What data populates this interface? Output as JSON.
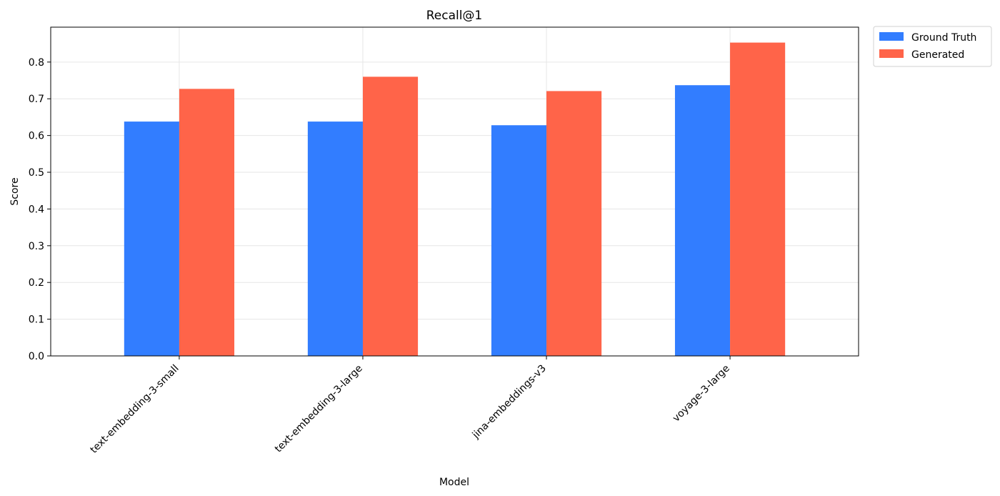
{
  "chart_data": {
    "type": "bar",
    "title": "Recall@1",
    "xlabel": "Model",
    "ylabel": "Score",
    "ylim": [
      0,
      0.895
    ],
    "yticks": [
      0.0,
      0.1,
      0.2,
      0.3,
      0.4,
      0.5,
      0.6,
      0.7,
      0.8
    ],
    "grid": true,
    "legend_position": "outside-top-right",
    "categories": [
      "text-embedding-3-small",
      "text-embedding-3-large",
      "jina-embeddings-v3",
      "voyage-3-large"
    ],
    "series": [
      {
        "name": "Ground Truth",
        "color": "#327dff",
        "values": [
          0.638,
          0.638,
          0.628,
          0.737
        ]
      },
      {
        "name": "Generated",
        "color": "#ff6449",
        "values": [
          0.727,
          0.76,
          0.721,
          0.853
        ]
      }
    ]
  }
}
